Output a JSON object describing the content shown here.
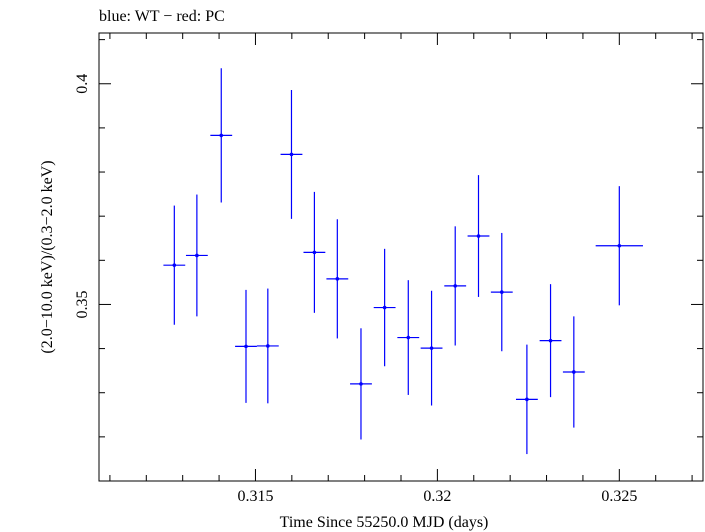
{
  "header": {
    "title": "blue: WT − red: PC"
  },
  "chart_data": {
    "type": "scatter",
    "title": "blue: WT − red: PC",
    "xlabel": "Time Since 55250.0 MJD (days)",
    "ylabel": "(2.0−10.0 keV)/(0.3−2.0 keV)",
    "xlim": [
      0.3107,
      0.3273
    ],
    "ylim": [
      0.31,
      0.4115
    ],
    "x_ticks": [
      {
        "value": 0.315,
        "label": "0.315"
      },
      {
        "value": 0.32,
        "label": "0.32"
      },
      {
        "value": 0.325,
        "label": "0.325"
      }
    ],
    "y_ticks": [
      {
        "value": 0.35,
        "label": "0.35"
      },
      {
        "value": 0.4,
        "label": "0.4"
      }
    ],
    "grid": false,
    "series": [
      {
        "name": "WT",
        "color": "#0000ff",
        "points": [
          {
            "x": 0.31277,
            "xerr": 0.0003,
            "y": 0.3589,
            "yerr": 0.0135
          },
          {
            "x": 0.31339,
            "xerr": 0.0003,
            "y": 0.3611,
            "yerr": 0.0138
          },
          {
            "x": 0.31406,
            "xerr": 0.0003,
            "y": 0.3883,
            "yerr": 0.0152
          },
          {
            "x": 0.31474,
            "xerr": 0.0003,
            "y": 0.3405,
            "yerr": 0.0128
          },
          {
            "x": 0.31534,
            "xerr": 0.0003,
            "y": 0.3406,
            "yerr": 0.013
          },
          {
            "x": 0.31599,
            "xerr": 0.0003,
            "y": 0.384,
            "yerr": 0.0146
          },
          {
            "x": 0.31662,
            "xerr": 0.0003,
            "y": 0.3618,
            "yerr": 0.0137
          },
          {
            "x": 0.31725,
            "xerr": 0.0003,
            "y": 0.3558,
            "yerr": 0.0135
          },
          {
            "x": 0.3179,
            "xerr": 0.0003,
            "y": 0.332,
            "yerr": 0.0126
          },
          {
            "x": 0.31855,
            "xerr": 0.0003,
            "y": 0.3493,
            "yerr": 0.0133
          },
          {
            "x": 0.3192,
            "xerr": 0.0003,
            "y": 0.3425,
            "yerr": 0.013
          },
          {
            "x": 0.31984,
            "xerr": 0.0003,
            "y": 0.3401,
            "yerr": 0.013
          },
          {
            "x": 0.32049,
            "xerr": 0.0003,
            "y": 0.3542,
            "yerr": 0.0135
          },
          {
            "x": 0.32113,
            "xerr": 0.0003,
            "y": 0.3655,
            "yerr": 0.0138
          },
          {
            "x": 0.32177,
            "xerr": 0.0003,
            "y": 0.3528,
            "yerr": 0.0134
          },
          {
            "x": 0.32246,
            "xerr": 0.0003,
            "y": 0.3285,
            "yerr": 0.0124
          },
          {
            "x": 0.32311,
            "xerr": 0.0003,
            "y": 0.3418,
            "yerr": 0.0128
          },
          {
            "x": 0.32375,
            "xerr": 0.0003,
            "y": 0.3347,
            "yerr": 0.0126
          },
          {
            "x": 0.325,
            "xerr": 0.00065,
            "y": 0.3633,
            "yerr": 0.0135
          }
        ]
      }
    ]
  }
}
